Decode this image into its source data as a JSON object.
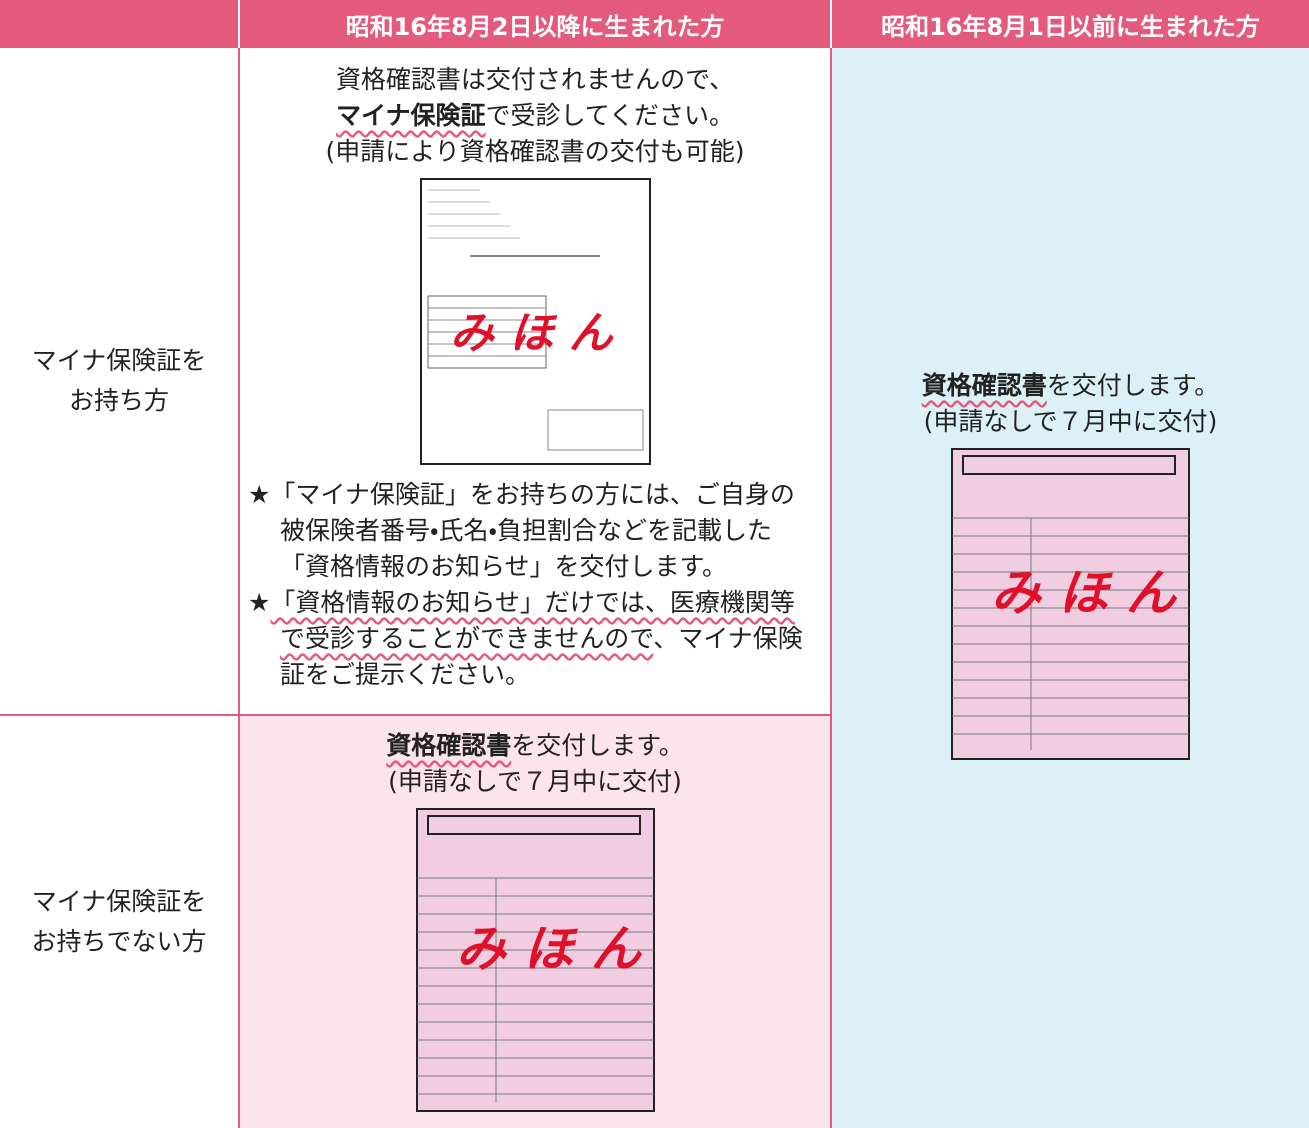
{
  "header": {
    "col1": "昭和16年8月2日以降に生まれた方",
    "col2": "昭和16年8月1日以前に生まれた方"
  },
  "rows": [
    {
      "label": [
        "マイナ保険証を",
        "お持ち方"
      ],
      "intro": "資格確認書は交付されませんので、",
      "emphasis": "マイナ保険証",
      "after": "で受診してください。",
      "note": "(申請により資格確認書の交付も可能)",
      "bullets": [
        {
          "mark": "★",
          "text": "「マイナ保険証」をお持ちの方には、ご自身の被保険者番号・氏名・負担割合などを記載した「資格情報のお知らせ」を交付します。"
        },
        {
          "mark": "★",
          "underlined": "「資格情報のお知らせ」だけでは、医療機関等で受診することができませんので",
          "text": "、マイナ保険証をご提示ください。"
        }
      ]
    },
    {
      "label": [
        "マイナ保険証を",
        "お持ちでない方"
      ],
      "emphasis": "資格確認書",
      "after": "を交付します。",
      "note": "(申請なしで７月中に交付)"
    }
  ],
  "right": {
    "emphasis": "資格確認書",
    "after": "を交付します。",
    "note": "(申請なしで７月中に交付)"
  },
  "sample": {
    "stamp": "み ほ ん"
  }
}
